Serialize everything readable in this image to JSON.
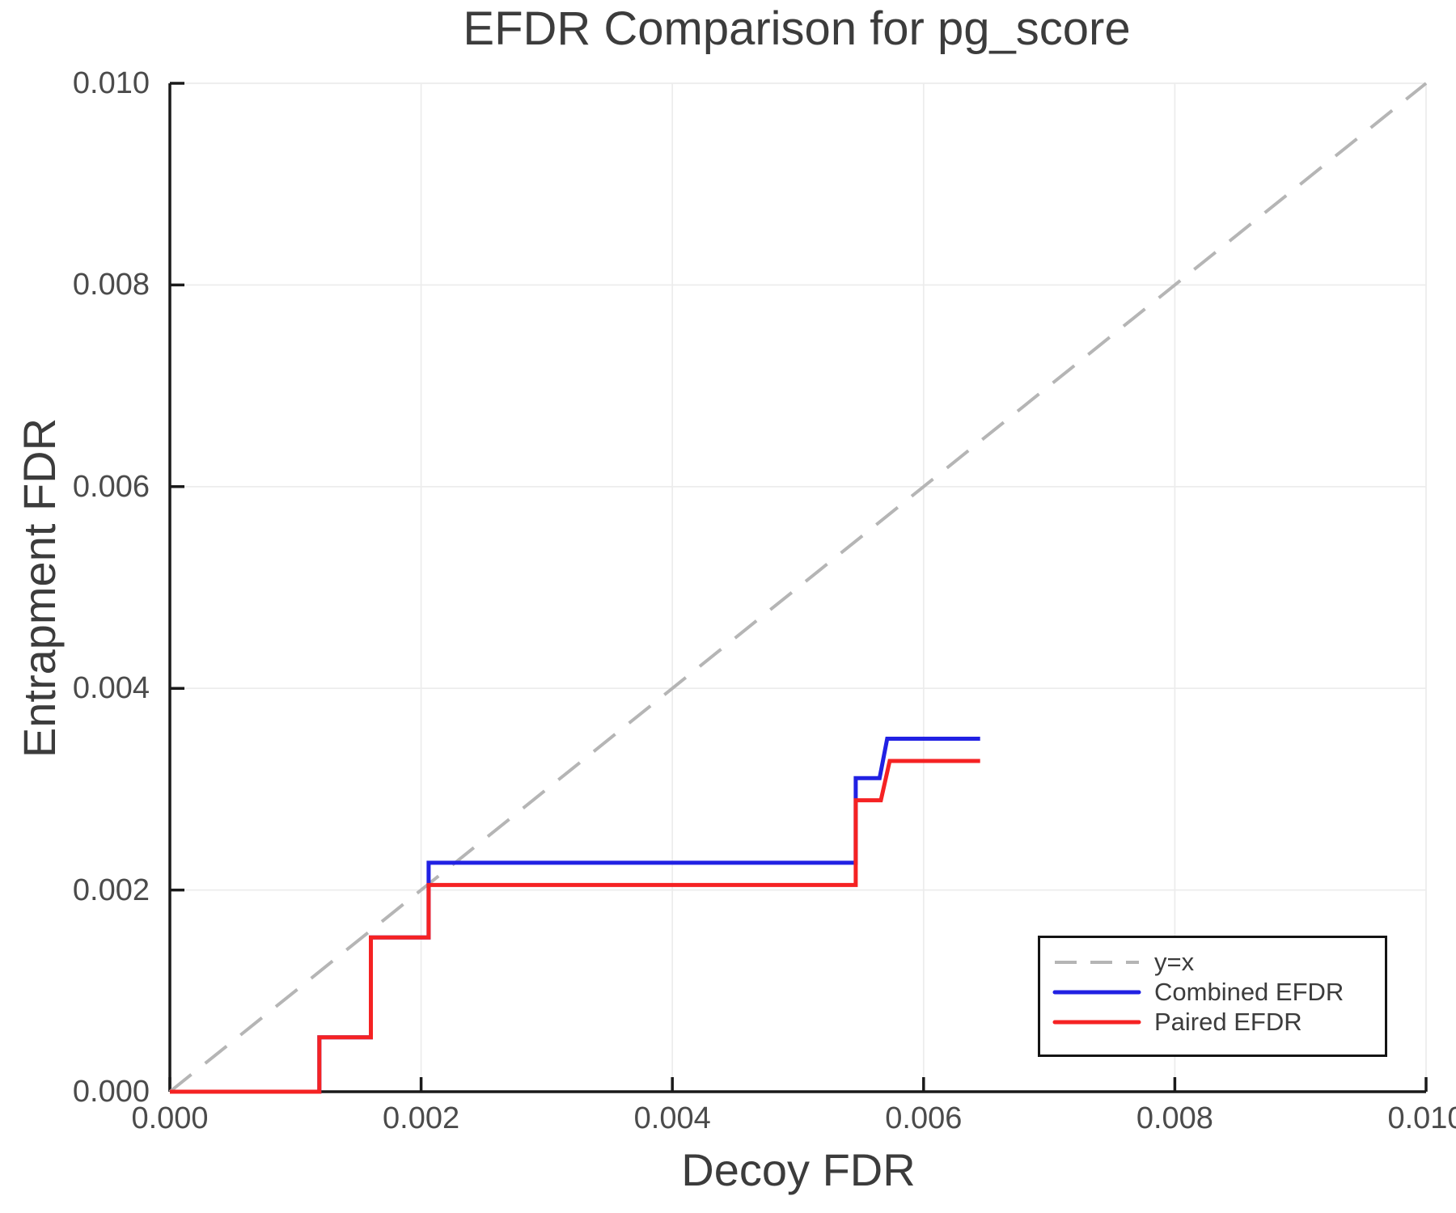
{
  "chart_data": {
    "type": "line",
    "title": "EFDR Comparison for pg_score",
    "xlabel": "Decoy FDR",
    "ylabel": "Entrapment FDR",
    "xlim": [
      0.0,
      0.01
    ],
    "ylim": [
      0.0,
      0.01
    ],
    "grid": true,
    "legend_position": "lower right",
    "xticks": {
      "values": [
        0.0,
        0.002,
        0.004,
        0.006,
        0.008,
        0.01
      ],
      "labels": [
        "0.000",
        "0.002",
        "0.004",
        "0.006",
        "0.008",
        "0.010"
      ]
    },
    "yticks": {
      "values": [
        0.0,
        0.002,
        0.004,
        0.006,
        0.008,
        0.01
      ],
      "labels": [
        "0.000",
        "0.002",
        "0.004",
        "0.006",
        "0.008",
        "0.010"
      ]
    },
    "series": [
      {
        "name": "y=x",
        "style": "dashed",
        "color": "#b5b5b5",
        "width": 4,
        "points": [
          [
            0.0,
            0.0
          ],
          [
            0.01,
            0.01
          ]
        ]
      },
      {
        "name": "Combined EFDR",
        "style": "solid",
        "color": "#2121e3",
        "width": 5,
        "points": [
          [
            0.0,
            0.0
          ],
          [
            0.00119,
            0.0
          ],
          [
            0.00119,
            0.00054
          ],
          [
            0.0016,
            0.00054
          ],
          [
            0.0016,
            0.00153
          ],
          [
            0.00206,
            0.00153
          ],
          [
            0.00206,
            0.00227
          ],
          [
            0.00546,
            0.00227
          ],
          [
            0.00546,
            0.00311
          ],
          [
            0.00565,
            0.00311
          ],
          [
            0.00571,
            0.0035
          ],
          [
            0.00645,
            0.0035
          ]
        ]
      },
      {
        "name": "Paired EFDR",
        "style": "solid",
        "color": "#f52223",
        "width": 5,
        "points": [
          [
            0.0,
            0.0
          ],
          [
            0.00119,
            0.0
          ],
          [
            0.00119,
            0.00054
          ],
          [
            0.0016,
            0.00054
          ],
          [
            0.0016,
            0.00153
          ],
          [
            0.00206,
            0.00153
          ],
          [
            0.00206,
            0.00205
          ],
          [
            0.00546,
            0.00205
          ],
          [
            0.00546,
            0.00289
          ],
          [
            0.00566,
            0.00289
          ],
          [
            0.00573,
            0.00328
          ],
          [
            0.00645,
            0.00328
          ]
        ]
      }
    ],
    "colors": {
      "grid": "#ececec",
      "spine": "#1a1a1a",
      "title_text": "#3c3c3c",
      "tick_text": "#4b4b4b"
    }
  }
}
